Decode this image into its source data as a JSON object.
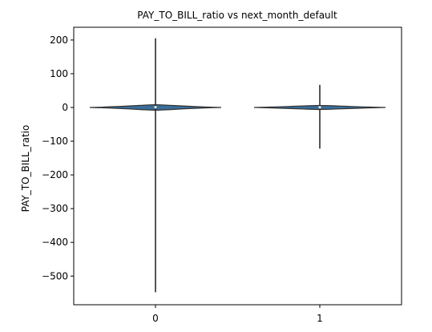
{
  "chart_data": {
    "type": "violin",
    "title": "PAY_TO_BILL_ratio vs next_month_default",
    "xlabel": "",
    "ylabel": "PAY_TO_BILL_ratio",
    "categories": [
      "0",
      "1"
    ],
    "ylim": [
      -580,
      240
    ],
    "yticks": [
      200,
      100,
      0,
      -100,
      -200,
      -300,
      -400,
      -500
    ],
    "ytick_labels": [
      "200",
      "100",
      "0",
      "−100",
      "−200",
      "−300",
      "−400",
      "−500"
    ],
    "grid": false,
    "violins": [
      {
        "category": "0",
        "min": -548,
        "max": 205,
        "q1": -2,
        "median": 0.8,
        "q3": 3,
        "body_low": -8,
        "body_high": 8
      },
      {
        "category": "1",
        "min": -122,
        "max": 67,
        "q1": -1,
        "median": 0.5,
        "q3": 2,
        "body_low": -6,
        "body_high": 6
      }
    ],
    "colors": {
      "body": "#3a6e9a",
      "edge": "#333333",
      "whisker": "#2b2b2b"
    }
  }
}
